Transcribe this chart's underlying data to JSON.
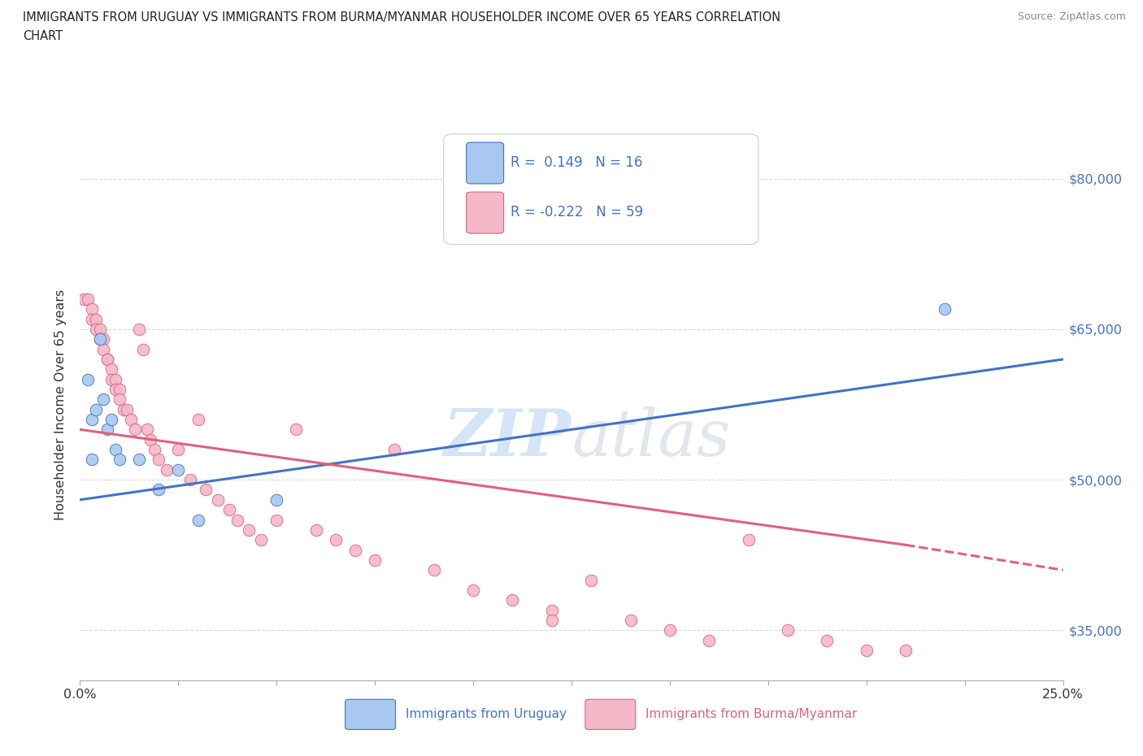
{
  "title_line1": "IMMIGRANTS FROM URUGUAY VS IMMIGRANTS FROM BURMA/MYANMAR HOUSEHOLDER INCOME OVER 65 YEARS CORRELATION",
  "title_line2": "CHART",
  "source": "Source: ZipAtlas.com",
  "ylabel": "Householder Income Over 65 years",
  "xlim": [
    0.0,
    0.25
  ],
  "ylim": [
    30000,
    85000
  ],
  "yticks": [
    35000,
    50000,
    65000,
    80000
  ],
  "ytick_labels": [
    "$35,000",
    "$50,000",
    "$65,000",
    "$80,000"
  ],
  "xticks": [
    0.0,
    0.025,
    0.05,
    0.075,
    0.1,
    0.125,
    0.15,
    0.175,
    0.2,
    0.225,
    0.25
  ],
  "color_uruguay": "#a8c8f0",
  "color_burma": "#f4b8c8",
  "color_line_uruguay": "#4472c4",
  "color_line_burma": "#e06080",
  "uruguay_R": 0.149,
  "uruguay_N": 16,
  "burma_R": -0.222,
  "burma_N": 59,
  "uruguay_x": [
    0.002,
    0.003,
    0.004,
    0.005,
    0.006,
    0.007,
    0.008,
    0.009,
    0.01,
    0.015,
    0.02,
    0.025,
    0.03,
    0.05,
    0.22,
    0.003
  ],
  "uruguay_y": [
    60000,
    56000,
    57000,
    64000,
    58000,
    55000,
    56000,
    53000,
    52000,
    52000,
    49000,
    51000,
    46000,
    48000,
    67000,
    52000
  ],
  "burma_x": [
    0.001,
    0.002,
    0.003,
    0.003,
    0.004,
    0.004,
    0.005,
    0.005,
    0.006,
    0.006,
    0.007,
    0.007,
    0.008,
    0.008,
    0.009,
    0.009,
    0.01,
    0.01,
    0.011,
    0.012,
    0.013,
    0.014,
    0.015,
    0.016,
    0.017,
    0.018,
    0.019,
    0.02,
    0.022,
    0.025,
    0.028,
    0.03,
    0.032,
    0.035,
    0.038,
    0.04,
    0.043,
    0.046,
    0.05,
    0.055,
    0.06,
    0.065,
    0.07,
    0.075,
    0.08,
    0.09,
    0.1,
    0.11,
    0.12,
    0.13,
    0.14,
    0.15,
    0.16,
    0.17,
    0.18,
    0.19,
    0.2,
    0.21,
    0.12
  ],
  "burma_y": [
    68000,
    68000,
    67000,
    66000,
    66000,
    65000,
    65000,
    64000,
    64000,
    63000,
    62000,
    62000,
    61000,
    60000,
    60000,
    59000,
    59000,
    58000,
    57000,
    57000,
    56000,
    55000,
    65000,
    63000,
    55000,
    54000,
    53000,
    52000,
    51000,
    53000,
    50000,
    56000,
    49000,
    48000,
    47000,
    46000,
    45000,
    44000,
    46000,
    55000,
    45000,
    44000,
    43000,
    42000,
    53000,
    41000,
    39000,
    38000,
    37000,
    40000,
    36000,
    35000,
    34000,
    44000,
    35000,
    34000,
    33000,
    33000,
    36000
  ],
  "watermark_zip": "ZIP",
  "watermark_atlas": "atlas",
  "background_color": "#ffffff",
  "grid_color": "#d8d8d8"
}
